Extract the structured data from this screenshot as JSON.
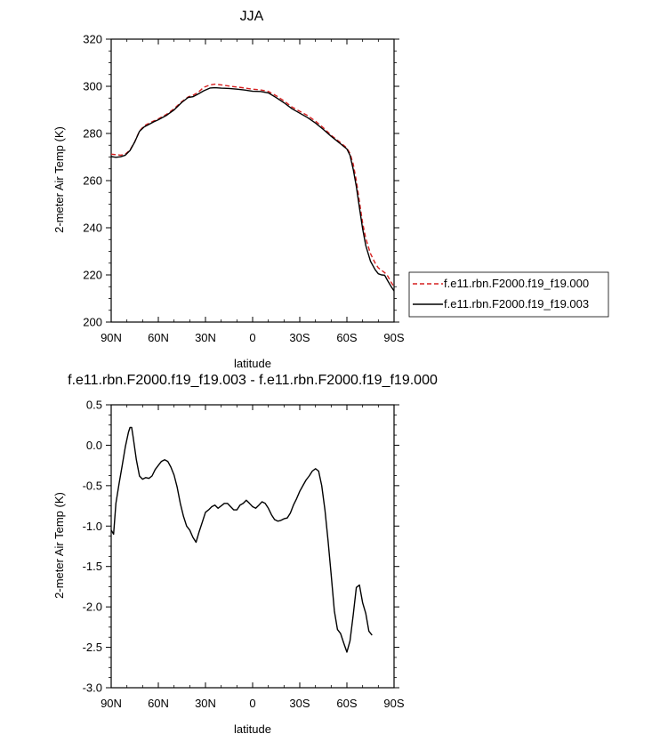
{
  "chart_data": [
    {
      "type": "line",
      "title": "JJA",
      "xlabel": "latitude",
      "ylabel": "2-meter Air Temp (K)",
      "xlim": [
        90,
        -90
      ],
      "ylim": [
        200,
        320
      ],
      "xticks": [
        90,
        60,
        30,
        0,
        -30,
        -60,
        -90
      ],
      "xtick_labels": [
        "90N",
        "60N",
        "30N",
        "0",
        "30S",
        "60S",
        "90S"
      ],
      "yticks": [
        200,
        220,
        240,
        260,
        280,
        300,
        320
      ],
      "ytick_labels": [
        "200",
        "220",
        "240",
        "260",
        "280",
        "300",
        "320"
      ],
      "legend_position": "right",
      "series": [
        {
          "name": "f.e11.rbn.F2000.f19_f19.000",
          "color": "#d62020",
          "dash": "dashed",
          "points": [
            [
              90,
              271.2
            ],
            [
              87,
              271.0
            ],
            [
              84,
              270.8
            ],
            [
              81,
              271.2
            ],
            [
              78,
              273.0
            ],
            [
              75,
              276.5
            ],
            [
              72,
              281.0
            ],
            [
              69,
              283.3
            ],
            [
              66,
              284.3
            ],
            [
              63,
              285.3
            ],
            [
              60,
              286.2
            ],
            [
              55,
              288.0
            ],
            [
              50,
              290.5
            ],
            [
              45,
              293.5
            ],
            [
              41,
              295.5
            ],
            [
              38,
              296.2
            ],
            [
              35,
              297.3
            ],
            [
              31,
              299.6
            ],
            [
              27,
              300.6
            ],
            [
              24,
              300.9
            ],
            [
              20,
              300.6
            ],
            [
              15,
              300.1
            ],
            [
              10,
              299.7
            ],
            [
              5,
              299.3
            ],
            [
              0,
              298.8
            ],
            [
              -5,
              298.5
            ],
            [
              -10,
              297.8
            ],
            [
              -15,
              296.0
            ],
            [
              -20,
              293.8
            ],
            [
              -25,
              291.2
            ],
            [
              -30,
              289.4
            ],
            [
              -35,
              287.6
            ],
            [
              -40,
              285.2
            ],
            [
              -45,
              282.4
            ],
            [
              -50,
              279.2
            ],
            [
              -55,
              276.6
            ],
            [
              -60,
              273.8
            ],
            [
              -62,
              271.5
            ],
            [
              -64,
              267.0
            ],
            [
              -66,
              260.0
            ],
            [
              -68,
              251.0
            ],
            [
              -70,
              242.0
            ],
            [
              -72,
              235.5
            ],
            [
              -75,
              229.0
            ],
            [
              -78,
              225.0
            ],
            [
              -80,
              223.0
            ],
            [
              -82,
              222.0
            ],
            [
              -84,
              221.0
            ],
            [
              -86,
              219.5
            ],
            [
              -88,
              217.0
            ],
            [
              -90,
              215.0
            ]
          ]
        },
        {
          "name": "f.e11.rbn.F2000.f19_f19.003",
          "color": "#000000",
          "dash": "solid",
          "points": [
            [
              90,
              270.2
            ],
            [
              87,
              269.9
            ],
            [
              84,
              270.1
            ],
            [
              81,
              270.8
            ],
            [
              78,
              272.8
            ],
            [
              75,
              276.4
            ],
            [
              72,
              280.9
            ],
            [
              69,
              282.8
            ],
            [
              66,
              283.8
            ],
            [
              63,
              284.9
            ],
            [
              60,
              285.8
            ],
            [
              55,
              287.6
            ],
            [
              50,
              290.0
            ],
            [
              45,
              293.2
            ],
            [
              41,
              295.3
            ],
            [
              38,
              295.6
            ],
            [
              35,
              296.6
            ],
            [
              31,
              298.1
            ],
            [
              27,
              299.3
            ],
            [
              24,
              299.4
            ],
            [
              20,
              299.2
            ],
            [
              15,
              299.1
            ],
            [
              10,
              298.8
            ],
            [
              5,
              298.4
            ],
            [
              0,
              297.9
            ],
            [
              -5,
              297.8
            ],
            [
              -10,
              297.2
            ],
            [
              -15,
              295.2
            ],
            [
              -20,
              293.0
            ],
            [
              -25,
              290.5
            ],
            [
              -30,
              288.6
            ],
            [
              -35,
              286.7
            ],
            [
              -40,
              284.4
            ],
            [
              -45,
              281.7
            ],
            [
              -50,
              278.8
            ],
            [
              -55,
              276.1
            ],
            [
              -60,
              273.4
            ],
            [
              -62,
              270.7
            ],
            [
              -64,
              264.8
            ],
            [
              -66,
              257.5
            ],
            [
              -68,
              248.5
            ],
            [
              -70,
              239.5
            ],
            [
              -72,
              232.5
            ],
            [
              -75,
              225.8
            ],
            [
              -78,
              222.2
            ],
            [
              -80,
              220.5
            ],
            [
              -82,
              220.0
            ],
            [
              -84,
              219.9
            ],
            [
              -86,
              217.5
            ],
            [
              -88,
              215.2
            ],
            [
              -90,
              213.2
            ]
          ]
        }
      ]
    },
    {
      "type": "line",
      "title": "f.e11.rbn.F2000.f19_f19.003 - f.e11.rbn.F2000.f19_f19.000",
      "xlabel": "latitude",
      "ylabel": "2-meter Air Temp (K)",
      "xlim": [
        90,
        -90
      ],
      "ylim": [
        -3.0,
        0.5
      ],
      "xticks": [
        90,
        60,
        30,
        0,
        -30,
        -60,
        -90
      ],
      "xtick_labels": [
        "90N",
        "60N",
        "30N",
        "0",
        "30S",
        "60S",
        "90S"
      ],
      "yticks": [
        0.5,
        0.0,
        -0.5,
        -1.0,
        -1.5,
        -2.0,
        -2.5,
        -3.0
      ],
      "ytick_labels": [
        "0.5",
        "0.0",
        "-0.5",
        "-1.0",
        "-1.5",
        "-2.0",
        "-2.5",
        "-3.0"
      ],
      "series": [
        {
          "color": "#000000",
          "dash": "solid",
          "points": [
            [
              90,
              -1.05
            ],
            [
              88.5,
              -1.1
            ],
            [
              87,
              -0.72
            ],
            [
              85,
              -0.48
            ],
            [
              83,
              -0.25
            ],
            [
              81,
              -0.02
            ],
            [
              79,
              0.16
            ],
            [
              78,
              0.22
            ],
            [
              77,
              0.22
            ],
            [
              76,
              0.1
            ],
            [
              74,
              -0.18
            ],
            [
              72,
              -0.38
            ],
            [
              70,
              -0.42
            ],
            [
              68,
              -0.4
            ],
            [
              66,
              -0.41
            ],
            [
              64,
              -0.38
            ],
            [
              62,
              -0.3
            ],
            [
              60,
              -0.25
            ],
            [
              58,
              -0.2
            ],
            [
              56,
              -0.18
            ],
            [
              54,
              -0.2
            ],
            [
              52,
              -0.27
            ],
            [
              50,
              -0.37
            ],
            [
              48,
              -0.52
            ],
            [
              46,
              -0.72
            ],
            [
              44,
              -0.88
            ],
            [
              42,
              -1.0
            ],
            [
              40,
              -1.05
            ],
            [
              38,
              -1.14
            ],
            [
              36,
              -1.2
            ],
            [
              34,
              -1.07
            ],
            [
              32,
              -0.95
            ],
            [
              30,
              -0.83
            ],
            [
              28,
              -0.8
            ],
            [
              26,
              -0.76
            ],
            [
              24,
              -0.74
            ],
            [
              22,
              -0.78
            ],
            [
              20,
              -0.75
            ],
            [
              18,
              -0.72
            ],
            [
              16,
              -0.72
            ],
            [
              14,
              -0.76
            ],
            [
              12,
              -0.8
            ],
            [
              10,
              -0.8
            ],
            [
              8,
              -0.74
            ],
            [
              6,
              -0.72
            ],
            [
              4,
              -0.68
            ],
            [
              2,
              -0.72
            ],
            [
              0,
              -0.76
            ],
            [
              -2,
              -0.78
            ],
            [
              -4,
              -0.74
            ],
            [
              -6,
              -0.7
            ],
            [
              -8,
              -0.72
            ],
            [
              -10,
              -0.78
            ],
            [
              -12,
              -0.86
            ],
            [
              -14,
              -0.92
            ],
            [
              -16,
              -0.94
            ],
            [
              -18,
              -0.93
            ],
            [
              -20,
              -0.91
            ],
            [
              -22,
              -0.9
            ],
            [
              -24,
              -0.84
            ],
            [
              -26,
              -0.74
            ],
            [
              -28,
              -0.66
            ],
            [
              -30,
              -0.57
            ],
            [
              -32,
              -0.5
            ],
            [
              -34,
              -0.43
            ],
            [
              -36,
              -0.38
            ],
            [
              -38,
              -0.32
            ],
            [
              -40,
              -0.29
            ],
            [
              -42,
              -0.32
            ],
            [
              -44,
              -0.5
            ],
            [
              -46,
              -0.8
            ],
            [
              -48,
              -1.18
            ],
            [
              -50,
              -1.6
            ],
            [
              -52,
              -2.05
            ],
            [
              -54,
              -2.28
            ],
            [
              -56,
              -2.33
            ],
            [
              -58,
              -2.45
            ],
            [
              -60,
              -2.56
            ],
            [
              -62,
              -2.42
            ],
            [
              -64,
              -2.1
            ],
            [
              -66,
              -1.76
            ],
            [
              -68,
              -1.73
            ],
            [
              -70,
              -1.95
            ],
            [
              -72,
              -2.08
            ],
            [
              -74,
              -2.3
            ],
            [
              -76,
              -2.35
            ]
          ]
        }
      ]
    }
  ]
}
